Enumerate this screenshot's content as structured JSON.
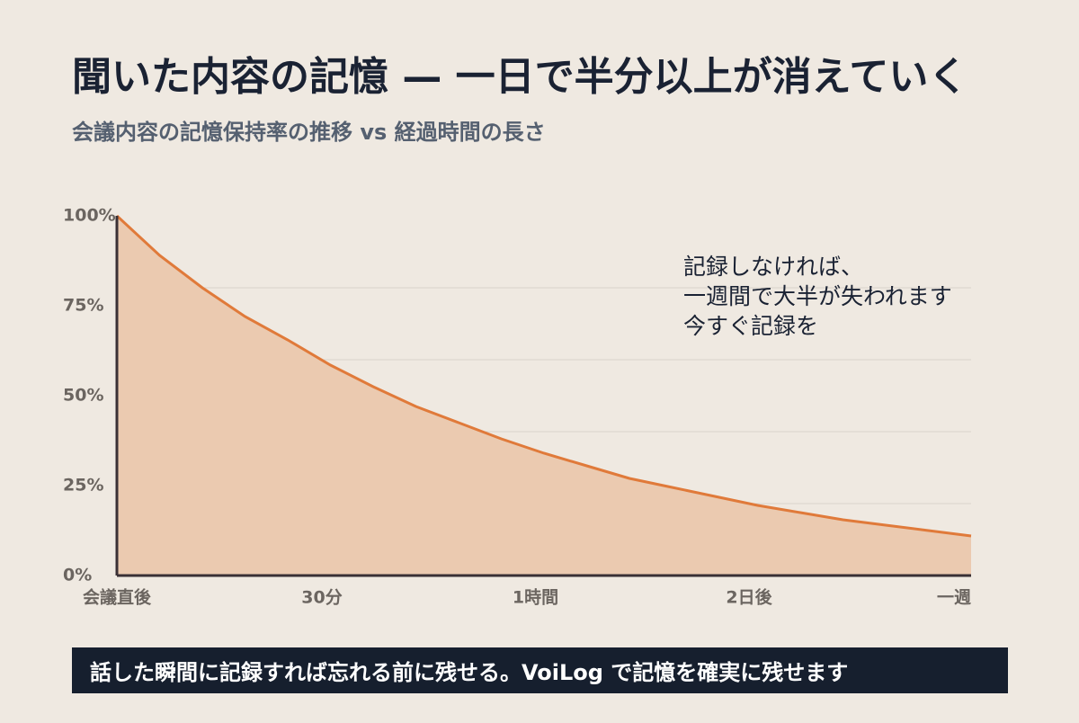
{
  "chart_data": {
    "type": "area",
    "title": "聞いた内容の記憶 — 一日で半分以上が消えていく",
    "subtitle": "会議内容の記憶保持率の推移 vs 経過時間の長さ",
    "x": [
      0,
      5,
      10,
      15,
      20,
      25,
      30,
      35,
      40,
      45,
      50,
      55,
      60,
      65,
      70,
      75,
      80,
      85,
      90,
      95,
      100
    ],
    "values": [
      100,
      89,
      80,
      72,
      65.5,
      58.5,
      52.5,
      47,
      42.5,
      38,
      34,
      30.5,
      27,
      24.5,
      22,
      19.5,
      17.5,
      15.5,
      14,
      12.5,
      11
    ],
    "color": "#e07a3a",
    "fill": "#ebcab0",
    "xlim": [
      0,
      100
    ],
    "xticks": [
      {
        "value": 0,
        "label": "会議直後"
      },
      {
        "value": 24,
        "label": "30分"
      },
      {
        "value": 49,
        "label": "1時間"
      },
      {
        "value": 74,
        "label": "2日後"
      },
      {
        "value": 98,
        "label": "一週"
      }
    ],
    "ylim": [
      0,
      100
    ],
    "yticks": [
      {
        "value": 0,
        "label": "0%"
      },
      {
        "value": 25,
        "label": "25%"
      },
      {
        "value": 50,
        "label": "50%"
      },
      {
        "value": 75,
        "label": "75%"
      },
      {
        "value": 100,
        "label": "100%"
      }
    ],
    "grid_lines": [
      20,
      40,
      60,
      80
    ],
    "annotation": [
      "記録しなければ、",
      "一週間で大半が失われます",
      "今すぐ記録を"
    ],
    "footer": "話した瞬間に記録すれば忘れる前に残せる。VoiLog で記憶を確実に残せます"
  }
}
